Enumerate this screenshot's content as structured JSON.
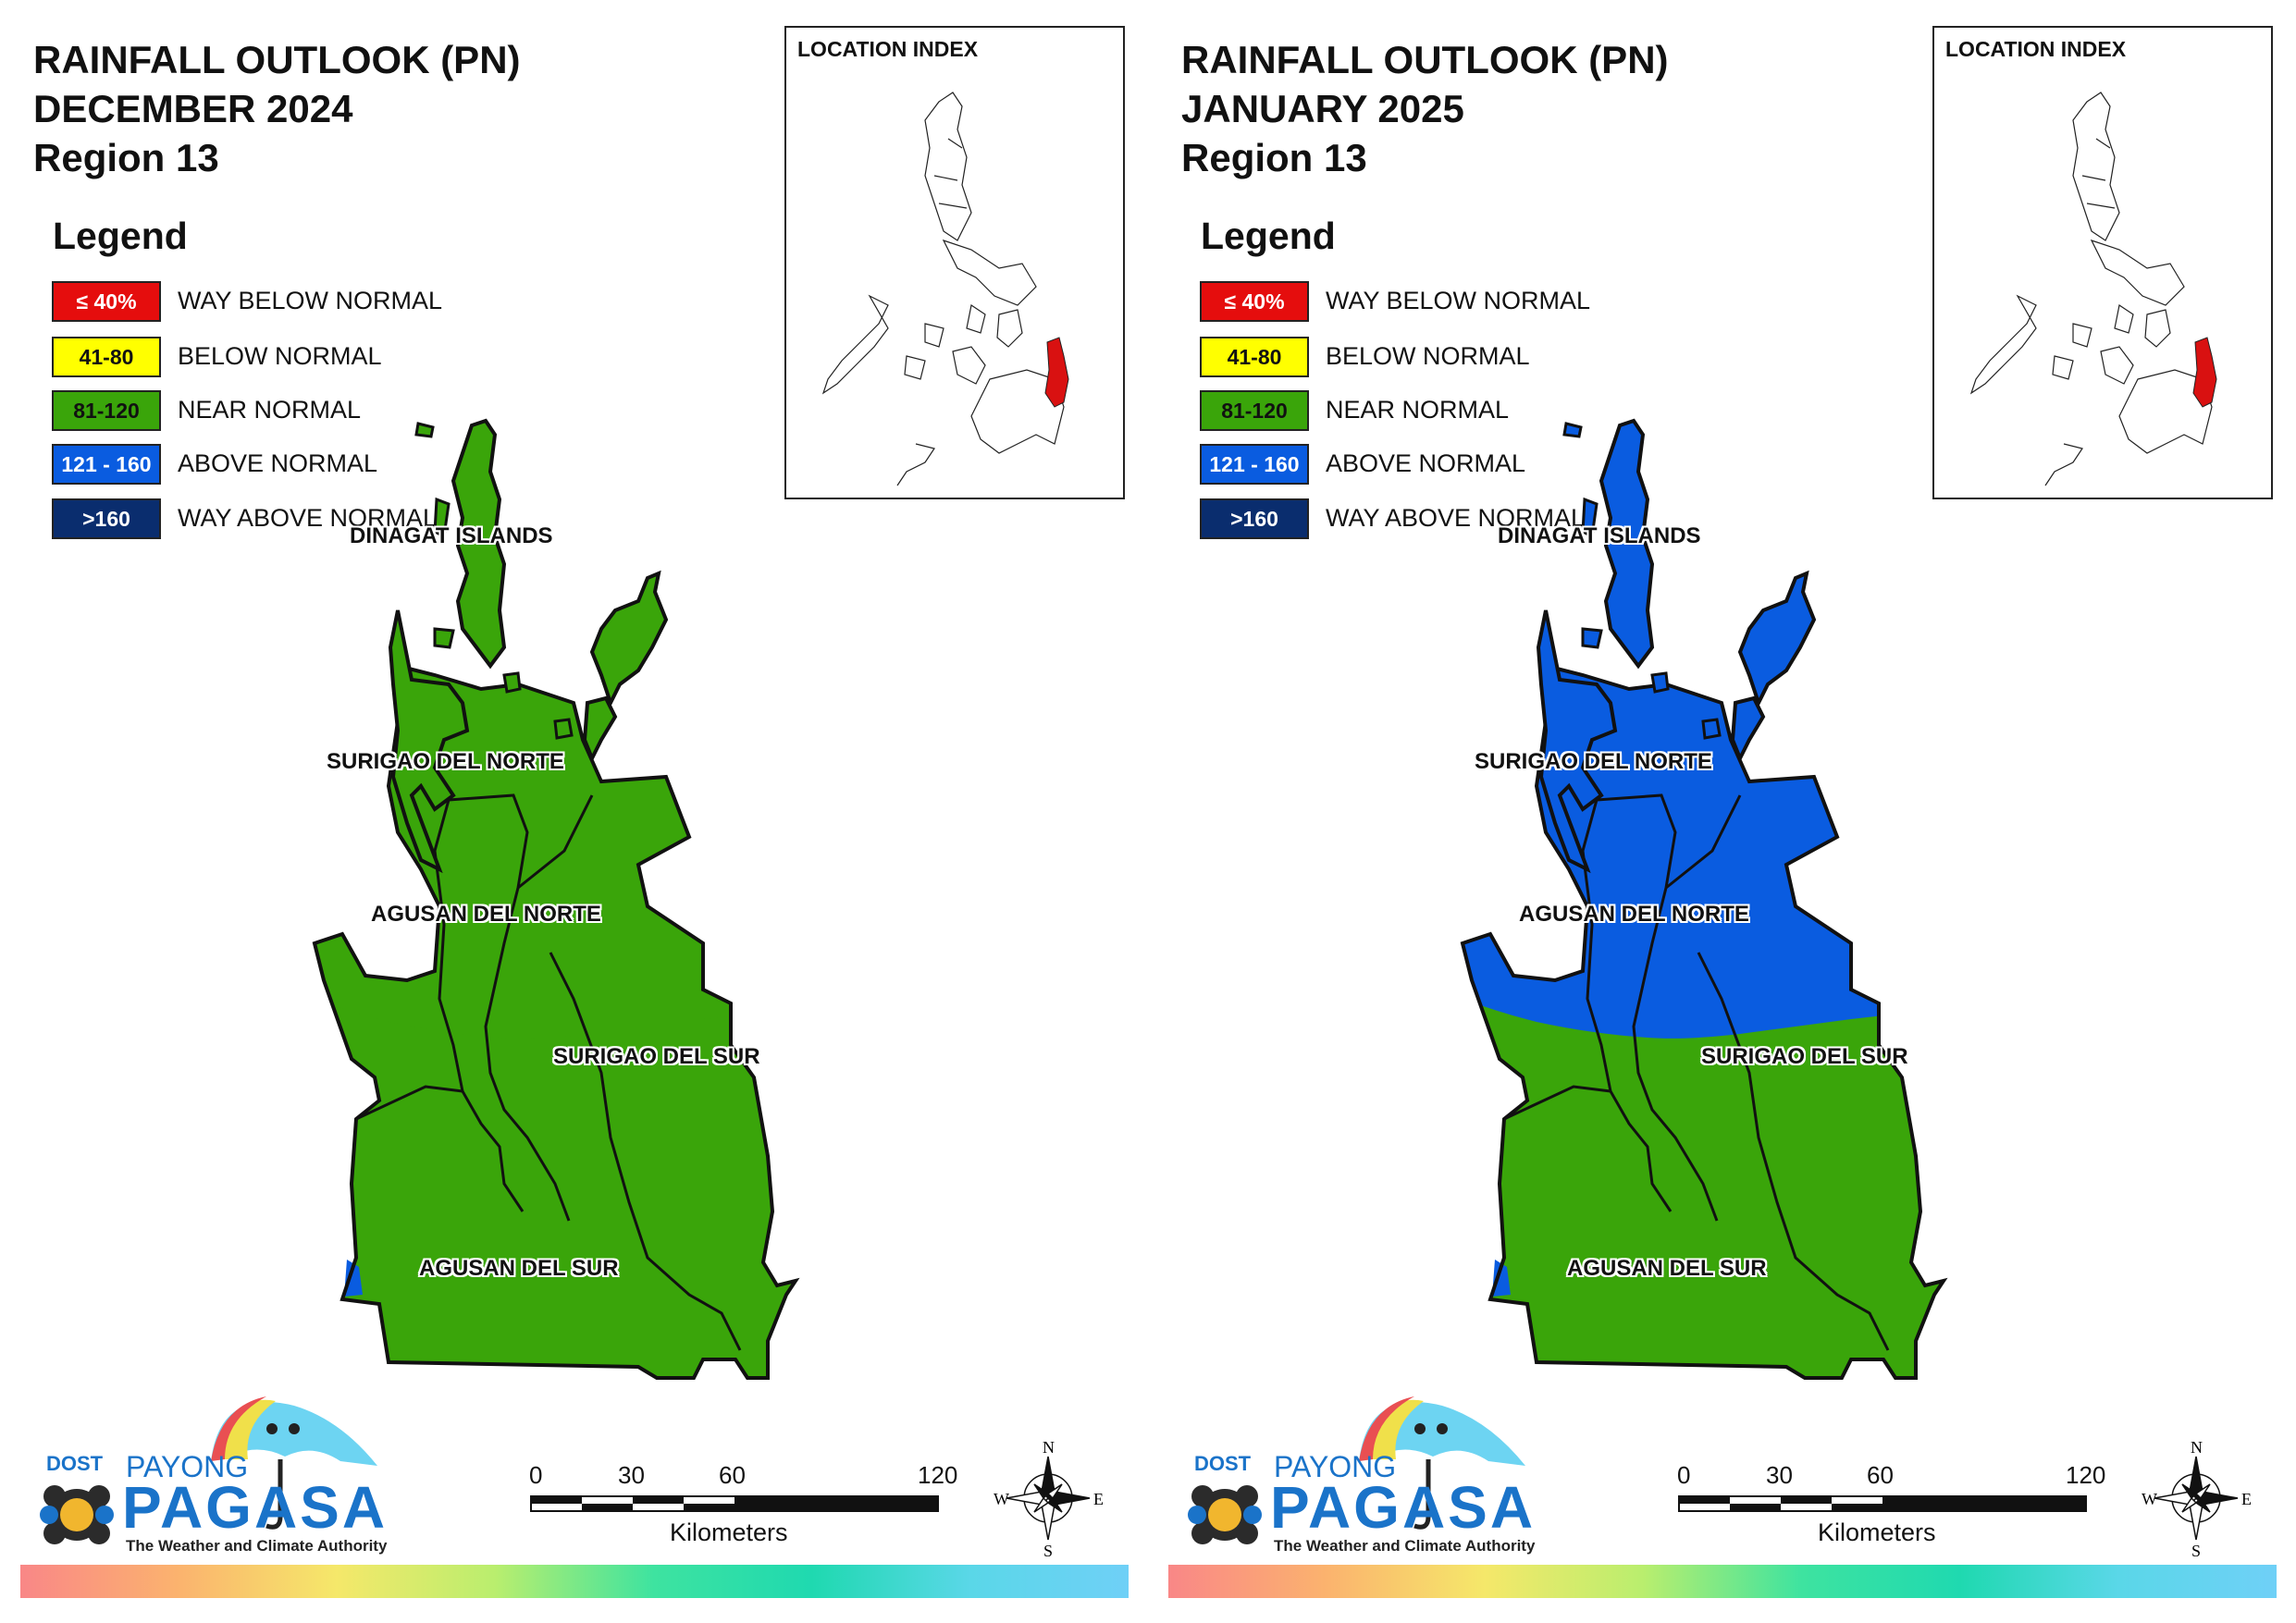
{
  "colors": {
    "way_below": "#e50d0d",
    "below": "#ffff00",
    "near": "#3aa50a",
    "above": "#0a5ce0",
    "way_above": "#0a2d6e",
    "brand_blue": "#1a73c9"
  },
  "legend": {
    "title": "Legend",
    "items": [
      {
        "range": "≤ 40%",
        "label": "WAY BELOW NORMAL",
        "color": "#e50d0d",
        "text_color": "#ffffff"
      },
      {
        "range": "41-80",
        "label": "BELOW NORMAL",
        "color": "#ffff00",
        "text_color": "#111111"
      },
      {
        "range": "81-120",
        "label": "NEAR NORMAL",
        "color": "#3aa50a",
        "text_color": "#111111"
      },
      {
        "range": "121 - 160",
        "label": "ABOVE NORMAL",
        "color": "#0a5ce0",
        "text_color": "#ffffff"
      },
      {
        "range": ">160",
        "label": "WAY ABOVE NORMAL",
        "color": "#0a2d6e",
        "text_color": "#ffffff"
      }
    ]
  },
  "provinces": {
    "dinagat": "DINAGAT ISLANDS",
    "surigao_norte": "SURIGAO DEL NORTE",
    "agusan_norte": "AGUSAN DEL NORTE",
    "surigao_sur": "SURIGAO DEL SUR",
    "agusan_sur": "AGUSAN DEL SUR"
  },
  "inset": {
    "title": "LOCATION INDEX",
    "highlight_color": "#d91111"
  },
  "scale_bar": {
    "ticks": [
      "0",
      "30",
      "60",
      "120"
    ],
    "unit": "Kilometers"
  },
  "compass": {
    "n": "N",
    "s": "S",
    "e": "E",
    "w": "W"
  },
  "branding": {
    "dost": "DOST",
    "payong": "PAYONG",
    "pagasa": "PAGASA",
    "tagline": "The Weather and Climate Authority"
  },
  "panels": [
    {
      "title_line1": "RAINFALL OUTLOOK (PN)",
      "title_line2": "DECEMBER 2024",
      "title_line3": "Region 13",
      "north_category": "NEAR NORMAL",
      "south_category": "NEAR NORMAL",
      "small_patch_category": "ABOVE NORMAL"
    },
    {
      "title_line1": "RAINFALL OUTLOOK (PN)",
      "title_line2": "JANUARY 2025",
      "title_line3": "Region 13",
      "north_category": "ABOVE NORMAL",
      "south_category": "NEAR NORMAL",
      "small_patch_category": "ABOVE NORMAL"
    }
  ]
}
